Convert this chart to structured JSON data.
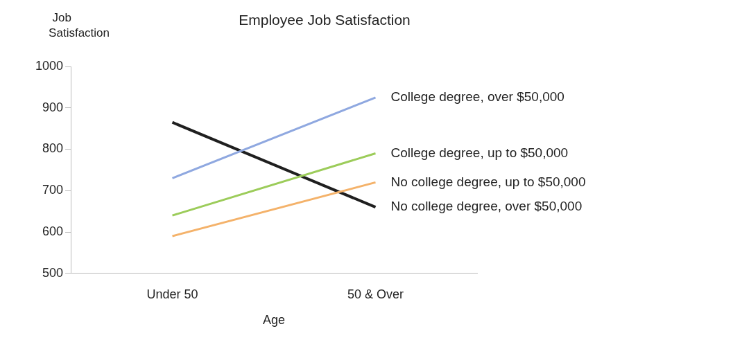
{
  "chart_data": {
    "type": "line",
    "title": "Employee Job Satisfaction",
    "xlabel": "Age",
    "ylabel": "Job Satisfaction",
    "categories": [
      "Under 50",
      "50 & Over"
    ],
    "series": [
      {
        "name": "College degree, over $50,000",
        "color": "#8fa8e0",
        "values": [
          730,
          925
        ]
      },
      {
        "name": "College degree, up to $50,000",
        "color": "#9ccc5a",
        "values": [
          640,
          790
        ]
      },
      {
        "name": "No college degree, up to $50,000",
        "color": "#f4b26a",
        "values": [
          590,
          720
        ]
      },
      {
        "name": "No college degree, over $50,000",
        "color": "#1f1f1f",
        "values": [
          865,
          660
        ]
      }
    ],
    "ylim": [
      500,
      1000
    ],
    "yticks": [
      500,
      600,
      700,
      800,
      900,
      1000
    ],
    "grid": false,
    "legend": false,
    "marker": "none",
    "line_style": "solid"
  }
}
